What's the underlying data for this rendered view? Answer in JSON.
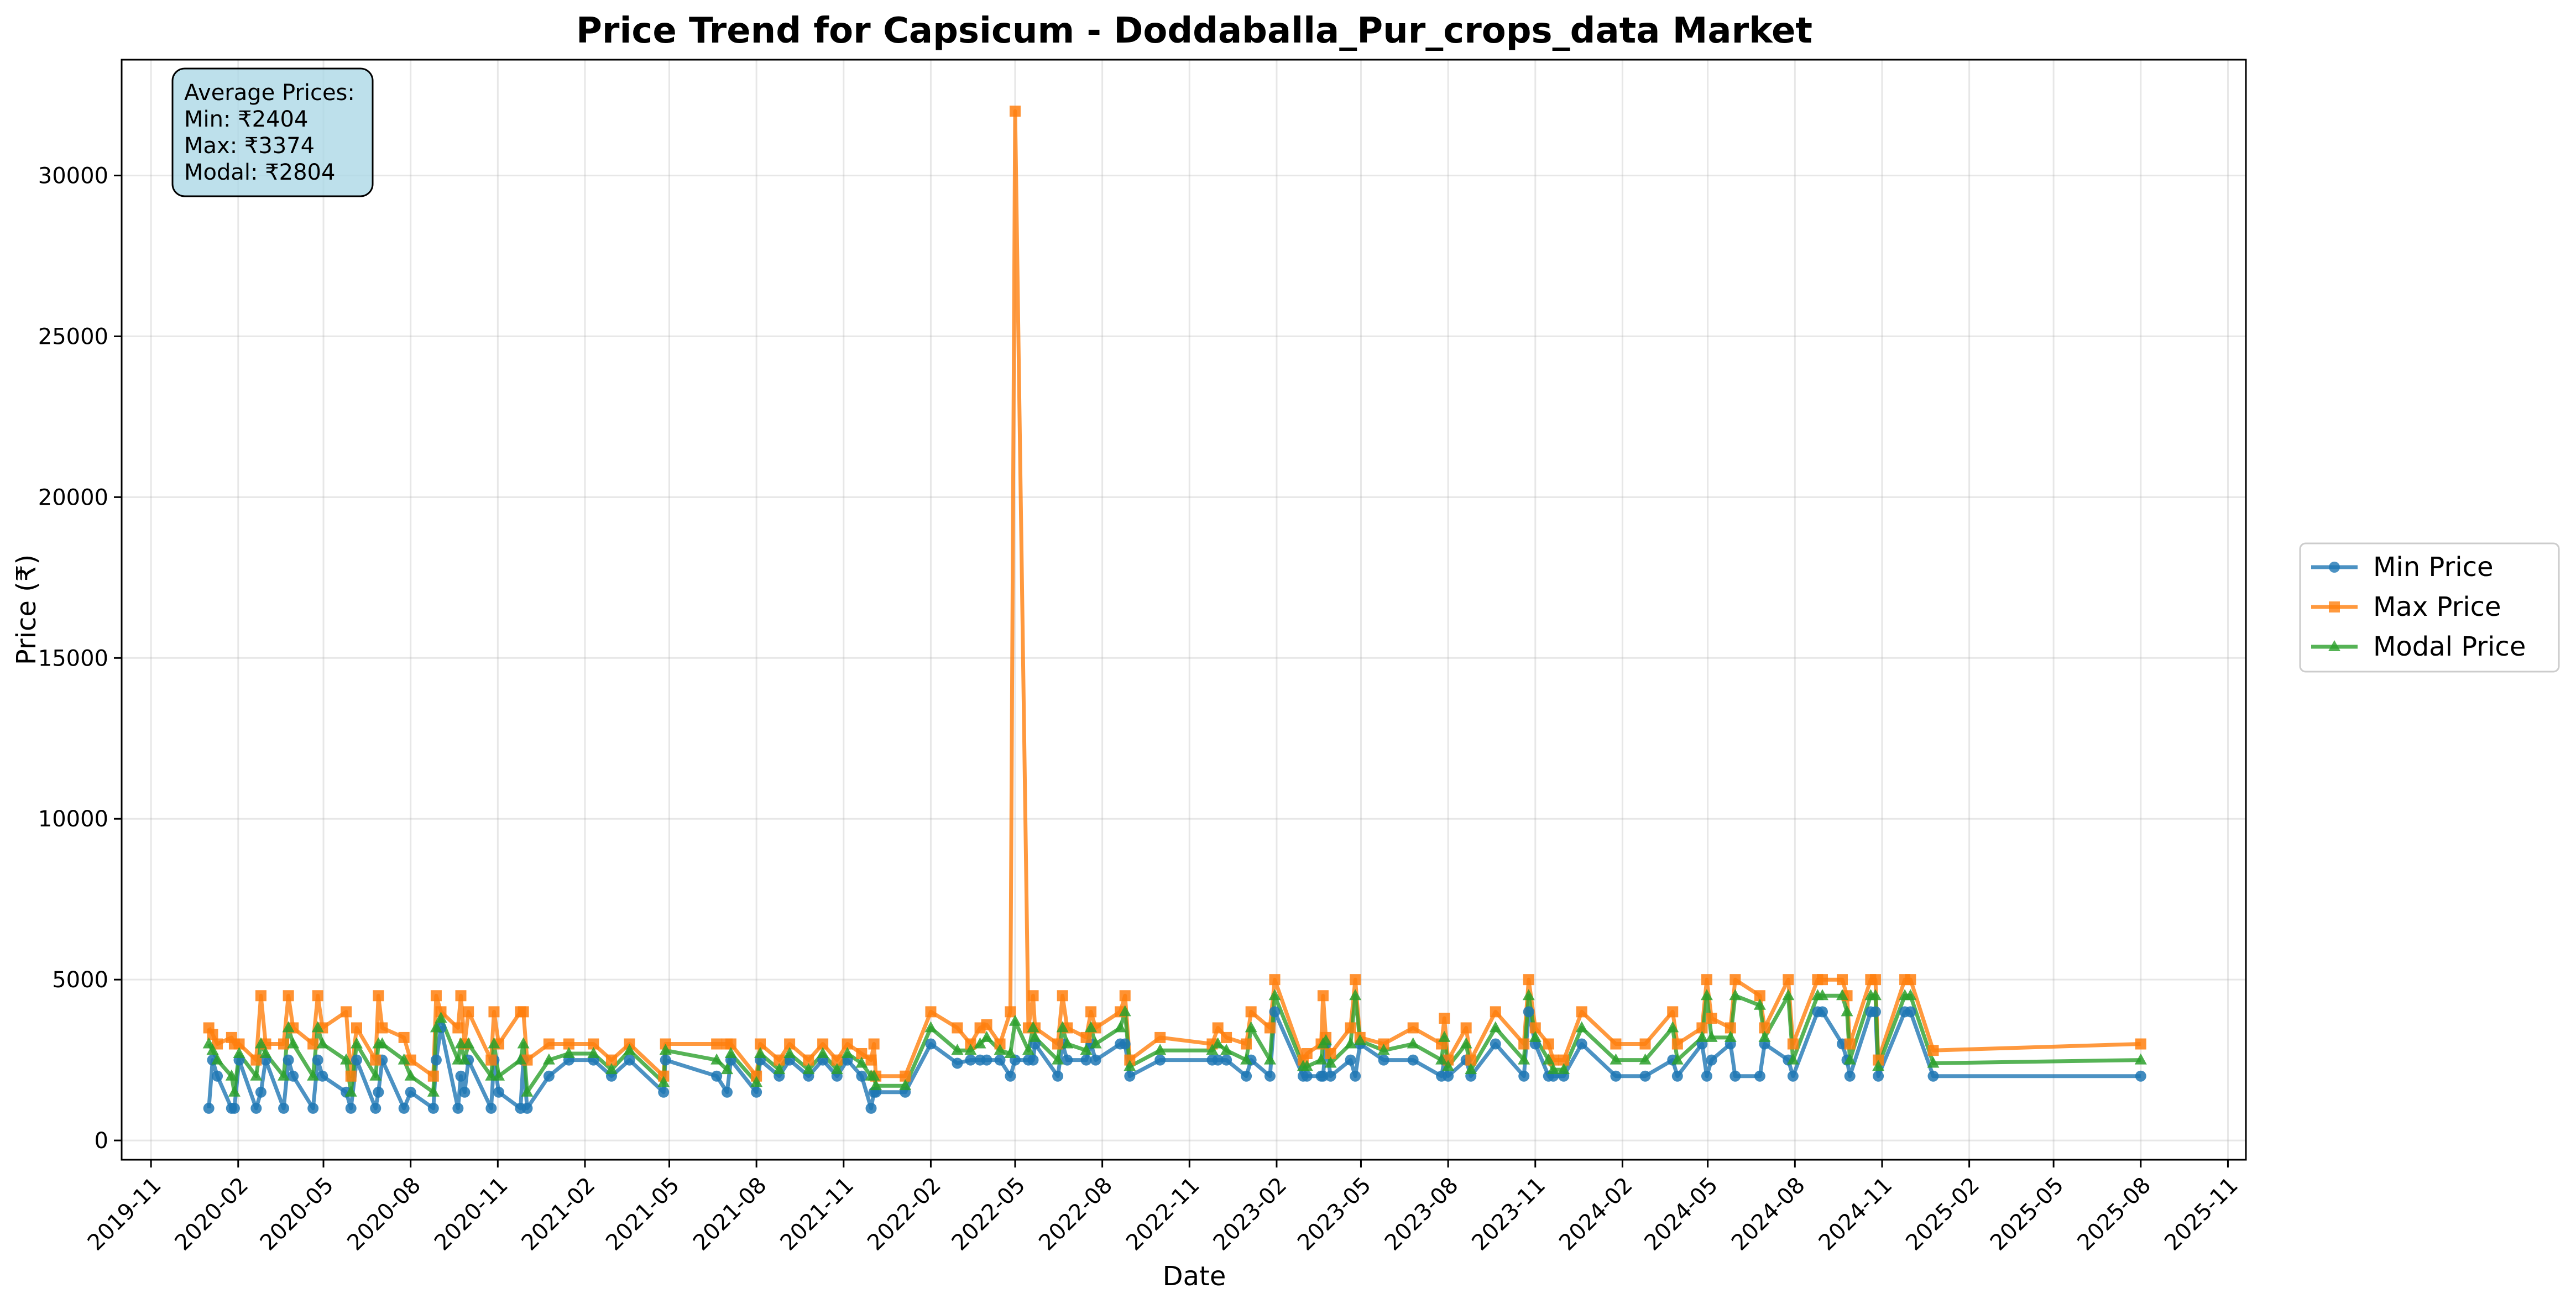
{
  "chart_data": {
    "type": "line",
    "title": "Price Trend for Capsicum - Doddaballa_Pur_crops_data Market",
    "xlabel": "Date",
    "ylabel": "Price (₹)",
    "xlim": [
      "2019-10-01",
      "2025-11-20"
    ],
    "ylim": [
      -600,
      33600
    ],
    "x_ticks": [
      "2019-11",
      "2020-02",
      "2020-05",
      "2020-08",
      "2020-11",
      "2021-02",
      "2021-05",
      "2021-08",
      "2021-11",
      "2022-02",
      "2022-05",
      "2022-08",
      "2022-11",
      "2023-02",
      "2023-05",
      "2023-08",
      "2023-11",
      "2024-02",
      "2024-05",
      "2024-08",
      "2024-11",
      "2025-02",
      "2025-05",
      "2025-08",
      "2025-11"
    ],
    "y_ticks": [
      0,
      5000,
      10000,
      15000,
      20000,
      25000,
      30000
    ],
    "grid": true,
    "legend_position": "right, outside plot",
    "annotation": {
      "heading": "Average Prices:",
      "min": "Min: ₹2404",
      "max": "Max: ₹3374",
      "modal": "Modal: ₹2804"
    },
    "series": [
      {
        "name": "Min Price",
        "color": "#1f77b4",
        "marker": "circle"
      },
      {
        "name": "Max Price",
        "color": "#ff7f0e",
        "marker": "square"
      },
      {
        "name": "Modal Price",
        "color": "#2ca02c",
        "marker": "triangle"
      }
    ],
    "points": [
      [
        "2020-01-01",
        1000,
        3500,
        3000
      ],
      [
        "2020-01-05",
        2500,
        3300,
        2800
      ],
      [
        "2020-01-10",
        2000,
        3000,
        2500
      ],
      [
        "2020-01-25",
        1000,
        3200,
        2000
      ],
      [
        "2020-01-28",
        1000,
        3000,
        1500
      ],
      [
        "2020-02-02",
        2500,
        3000,
        2700
      ],
      [
        "2020-02-20",
        1000,
        2500,
        2000
      ],
      [
        "2020-02-25",
        1500,
        4500,
        3000
      ],
      [
        "2020-03-01",
        2500,
        3000,
        2700
      ],
      [
        "2020-03-20",
        1000,
        3000,
        2000
      ],
      [
        "2020-03-25",
        2500,
        4500,
        3500
      ],
      [
        "2020-03-30",
        2000,
        3500,
        3000
      ],
      [
        "2020-04-20",
        1000,
        3000,
        2000
      ],
      [
        "2020-04-25",
        2500,
        4500,
        3500
      ],
      [
        "2020-04-30",
        2000,
        3500,
        3000
      ],
      [
        "2020-05-25",
        1500,
        4000,
        2500
      ],
      [
        "2020-05-30",
        1000,
        2000,
        1500
      ],
      [
        "2020-06-05",
        2500,
        3500,
        3000
      ],
      [
        "2020-06-25",
        1000,
        2500,
        2000
      ],
      [
        "2020-06-28",
        1500,
        4500,
        3000
      ],
      [
        "2020-07-02",
        2500,
        3500,
        3000
      ],
      [
        "2020-07-25",
        1000,
        3200,
        2500
      ],
      [
        "2020-08-01",
        1500,
        2500,
        2000
      ],
      [
        "2020-08-25",
        1000,
        2000,
        1500
      ],
      [
        "2020-08-28",
        2500,
        4500,
        3500
      ],
      [
        "2020-09-02",
        3500,
        4000,
        3800
      ],
      [
        "2020-09-20",
        1000,
        3500,
        2500
      ],
      [
        "2020-09-23",
        2000,
        4500,
        3000
      ],
      [
        "2020-09-27",
        1500,
        3000,
        2500
      ],
      [
        "2020-10-01",
        2500,
        4000,
        3000
      ],
      [
        "2020-10-25",
        1000,
        2500,
        2000
      ],
      [
        "2020-10-28",
        2500,
        4000,
        3000
      ],
      [
        "2020-11-02",
        1500,
        3000,
        2000
      ],
      [
        "2020-11-25",
        1000,
        4000,
        2500
      ],
      [
        "2020-11-28",
        2500,
        4000,
        3000
      ],
      [
        "2020-12-02",
        1000,
        2500,
        1500
      ],
      [
        "2020-12-25",
        2000,
        3000,
        2500
      ],
      [
        "2021-01-15",
        2500,
        3000,
        2700
      ],
      [
        "2021-02-10",
        2500,
        3000,
        2700
      ],
      [
        "2021-03-01",
        2000,
        2500,
        2200
      ],
      [
        "2021-03-20",
        2500,
        3000,
        2800
      ],
      [
        "2021-04-25",
        1500,
        2000,
        1800
      ],
      [
        "2021-04-27",
        2500,
        3000,
        2800
      ],
      [
        "2021-06-20",
        2000,
        3000,
        2500
      ],
      [
        "2021-07-01",
        1500,
        3000,
        2200
      ],
      [
        "2021-07-05",
        2500,
        3000,
        2700
      ],
      [
        "2021-08-01",
        1500,
        2000,
        1800
      ],
      [
        "2021-08-05",
        2500,
        3000,
        2700
      ],
      [
        "2021-08-25",
        2000,
        2500,
        2200
      ],
      [
        "2021-09-05",
        2500,
        3000,
        2700
      ],
      [
        "2021-09-25",
        2000,
        2500,
        2200
      ],
      [
        "2021-10-10",
        2500,
        3000,
        2700
      ],
      [
        "2021-10-25",
        2000,
        2500,
        2200
      ],
      [
        "2021-11-05",
        2500,
        3000,
        2700
      ],
      [
        "2021-11-20",
        2000,
        2700,
        2400
      ],
      [
        "2021-11-30",
        1000,
        2500,
        2000
      ],
      [
        "2021-12-03",
        1500,
        3000,
        2000
      ],
      [
        "2021-12-05",
        1500,
        2000,
        1700
      ],
      [
        "2022-01-05",
        1500,
        2000,
        1700
      ],
      [
        "2022-02-01",
        3000,
        4000,
        3500
      ],
      [
        "2022-03-01",
        2400,
        3500,
        2800
      ],
      [
        "2022-03-15",
        2500,
        3000,
        2800
      ],
      [
        "2022-03-25",
        2500,
        3500,
        3000
      ],
      [
        "2022-04-01",
        2500,
        3600,
        3200
      ],
      [
        "2022-04-15",
        2500,
        3000,
        2800
      ],
      [
        "2022-04-26",
        2000,
        4000,
        2700
      ],
      [
        "2022-05-01",
        2500,
        32000,
        3700
      ],
      [
        "2022-05-15",
        2500,
        3500,
        2800
      ],
      [
        "2022-05-20",
        2500,
        4500,
        3500
      ],
      [
        "2022-05-22",
        3000,
        3500,
        3200
      ],
      [
        "2022-06-15",
        2000,
        3000,
        2500
      ],
      [
        "2022-06-20",
        3000,
        4500,
        3500
      ],
      [
        "2022-06-25",
        2500,
        3500,
        3000
      ],
      [
        "2022-07-15",
        2500,
        3200,
        2800
      ],
      [
        "2022-07-20",
        3000,
        4000,
        3500
      ],
      [
        "2022-07-25",
        2500,
        3500,
        3000
      ],
      [
        "2022-08-20",
        3000,
        4000,
        3500
      ],
      [
        "2022-08-25",
        3000,
        4500,
        4000
      ],
      [
        "2022-08-30",
        2000,
        2500,
        2300
      ],
      [
        "2022-10-01",
        2500,
        3200,
        2800
      ],
      [
        "2022-11-25",
        2500,
        3000,
        2800
      ],
      [
        "2022-12-01",
        2500,
        3500,
        3000
      ],
      [
        "2022-12-10",
        2500,
        3200,
        2800
      ],
      [
        "2022-12-31",
        2000,
        3000,
        2500
      ],
      [
        "2023-01-05",
        2500,
        4000,
        3500
      ],
      [
        "2023-01-25",
        2000,
        3500,
        2500
      ],
      [
        "2023-01-30",
        4000,
        5000,
        4500
      ],
      [
        "2023-03-01",
        2000,
        2500,
        2300
      ],
      [
        "2023-03-05",
        2000,
        2700,
        2300
      ],
      [
        "2023-03-20",
        2000,
        3000,
        2500
      ],
      [
        "2023-03-22",
        2000,
        4500,
        3000
      ],
      [
        "2023-03-25",
        3000,
        3200,
        3100
      ],
      [
        "2023-03-30",
        2000,
        2700,
        2400
      ],
      [
        "2023-04-20",
        2500,
        3500,
        3000
      ],
      [
        "2023-04-25",
        2000,
        5000,
        4500
      ],
      [
        "2023-04-30",
        3000,
        3200,
        3100
      ],
      [
        "2023-05-25",
        2500,
        3000,
        2800
      ],
      [
        "2023-06-25",
        2500,
        3500,
        3000
      ],
      [
        "2023-07-25",
        2000,
        3000,
        2500
      ],
      [
        "2023-07-28",
        2500,
        3800,
        3200
      ],
      [
        "2023-08-01",
        2000,
        2500,
        2300
      ],
      [
        "2023-08-20",
        2500,
        3500,
        3000
      ],
      [
        "2023-08-25",
        2000,
        2500,
        2200
      ],
      [
        "2023-09-20",
        3000,
        4000,
        3500
      ],
      [
        "2023-10-20",
        2000,
        3000,
        2500
      ],
      [
        "2023-10-25",
        4000,
        5000,
        4500
      ],
      [
        "2023-11-01",
        3000,
        3500,
        3200
      ],
      [
        "2023-11-15",
        2000,
        3000,
        2500
      ],
      [
        "2023-11-20",
        2000,
        2500,
        2200
      ],
      [
        "2023-12-01",
        2000,
        2500,
        2200
      ],
      [
        "2023-12-20",
        3000,
        4000,
        3500
      ],
      [
        "2024-01-25",
        2000,
        3000,
        2500
      ],
      [
        "2024-02-25",
        2000,
        3000,
        2500
      ],
      [
        "2024-03-25",
        2500,
        4000,
        3500
      ],
      [
        "2024-03-30",
        2000,
        3000,
        2500
      ],
      [
        "2024-04-25",
        3000,
        3500,
        3200
      ],
      [
        "2024-04-30",
        2000,
        5000,
        4500
      ],
      [
        "2024-05-05",
        2500,
        3800,
        3200
      ],
      [
        "2024-05-25",
        3000,
        3500,
        3200
      ],
      [
        "2024-05-30",
        2000,
        5000,
        4500
      ],
      [
        "2024-06-25",
        2000,
        4500,
        4200
      ],
      [
        "2024-06-30",
        3000,
        3500,
        3200
      ],
      [
        "2024-07-25",
        2500,
        5000,
        4500
      ],
      [
        "2024-07-30",
        2000,
        3000,
        2500
      ],
      [
        "2024-08-25",
        4000,
        5000,
        4500
      ],
      [
        "2024-08-30",
        4000,
        5000,
        4500
      ],
      [
        "2024-09-20",
        3000,
        5000,
        4500
      ],
      [
        "2024-09-25",
        2500,
        4500,
        4000
      ],
      [
        "2024-09-28",
        2000,
        3000,
        2500
      ],
      [
        "2024-10-20",
        4000,
        5000,
        4500
      ],
      [
        "2024-10-25",
        4000,
        5000,
        4500
      ],
      [
        "2024-10-28",
        2000,
        2500,
        2300
      ],
      [
        "2024-11-25",
        4000,
        5000,
        4500
      ],
      [
        "2024-12-01",
        4000,
        5000,
        4500
      ],
      [
        "2024-12-25",
        2000,
        2800,
        2400
      ],
      [
        "2025-08-01",
        2000,
        3000,
        2500
      ]
    ]
  }
}
